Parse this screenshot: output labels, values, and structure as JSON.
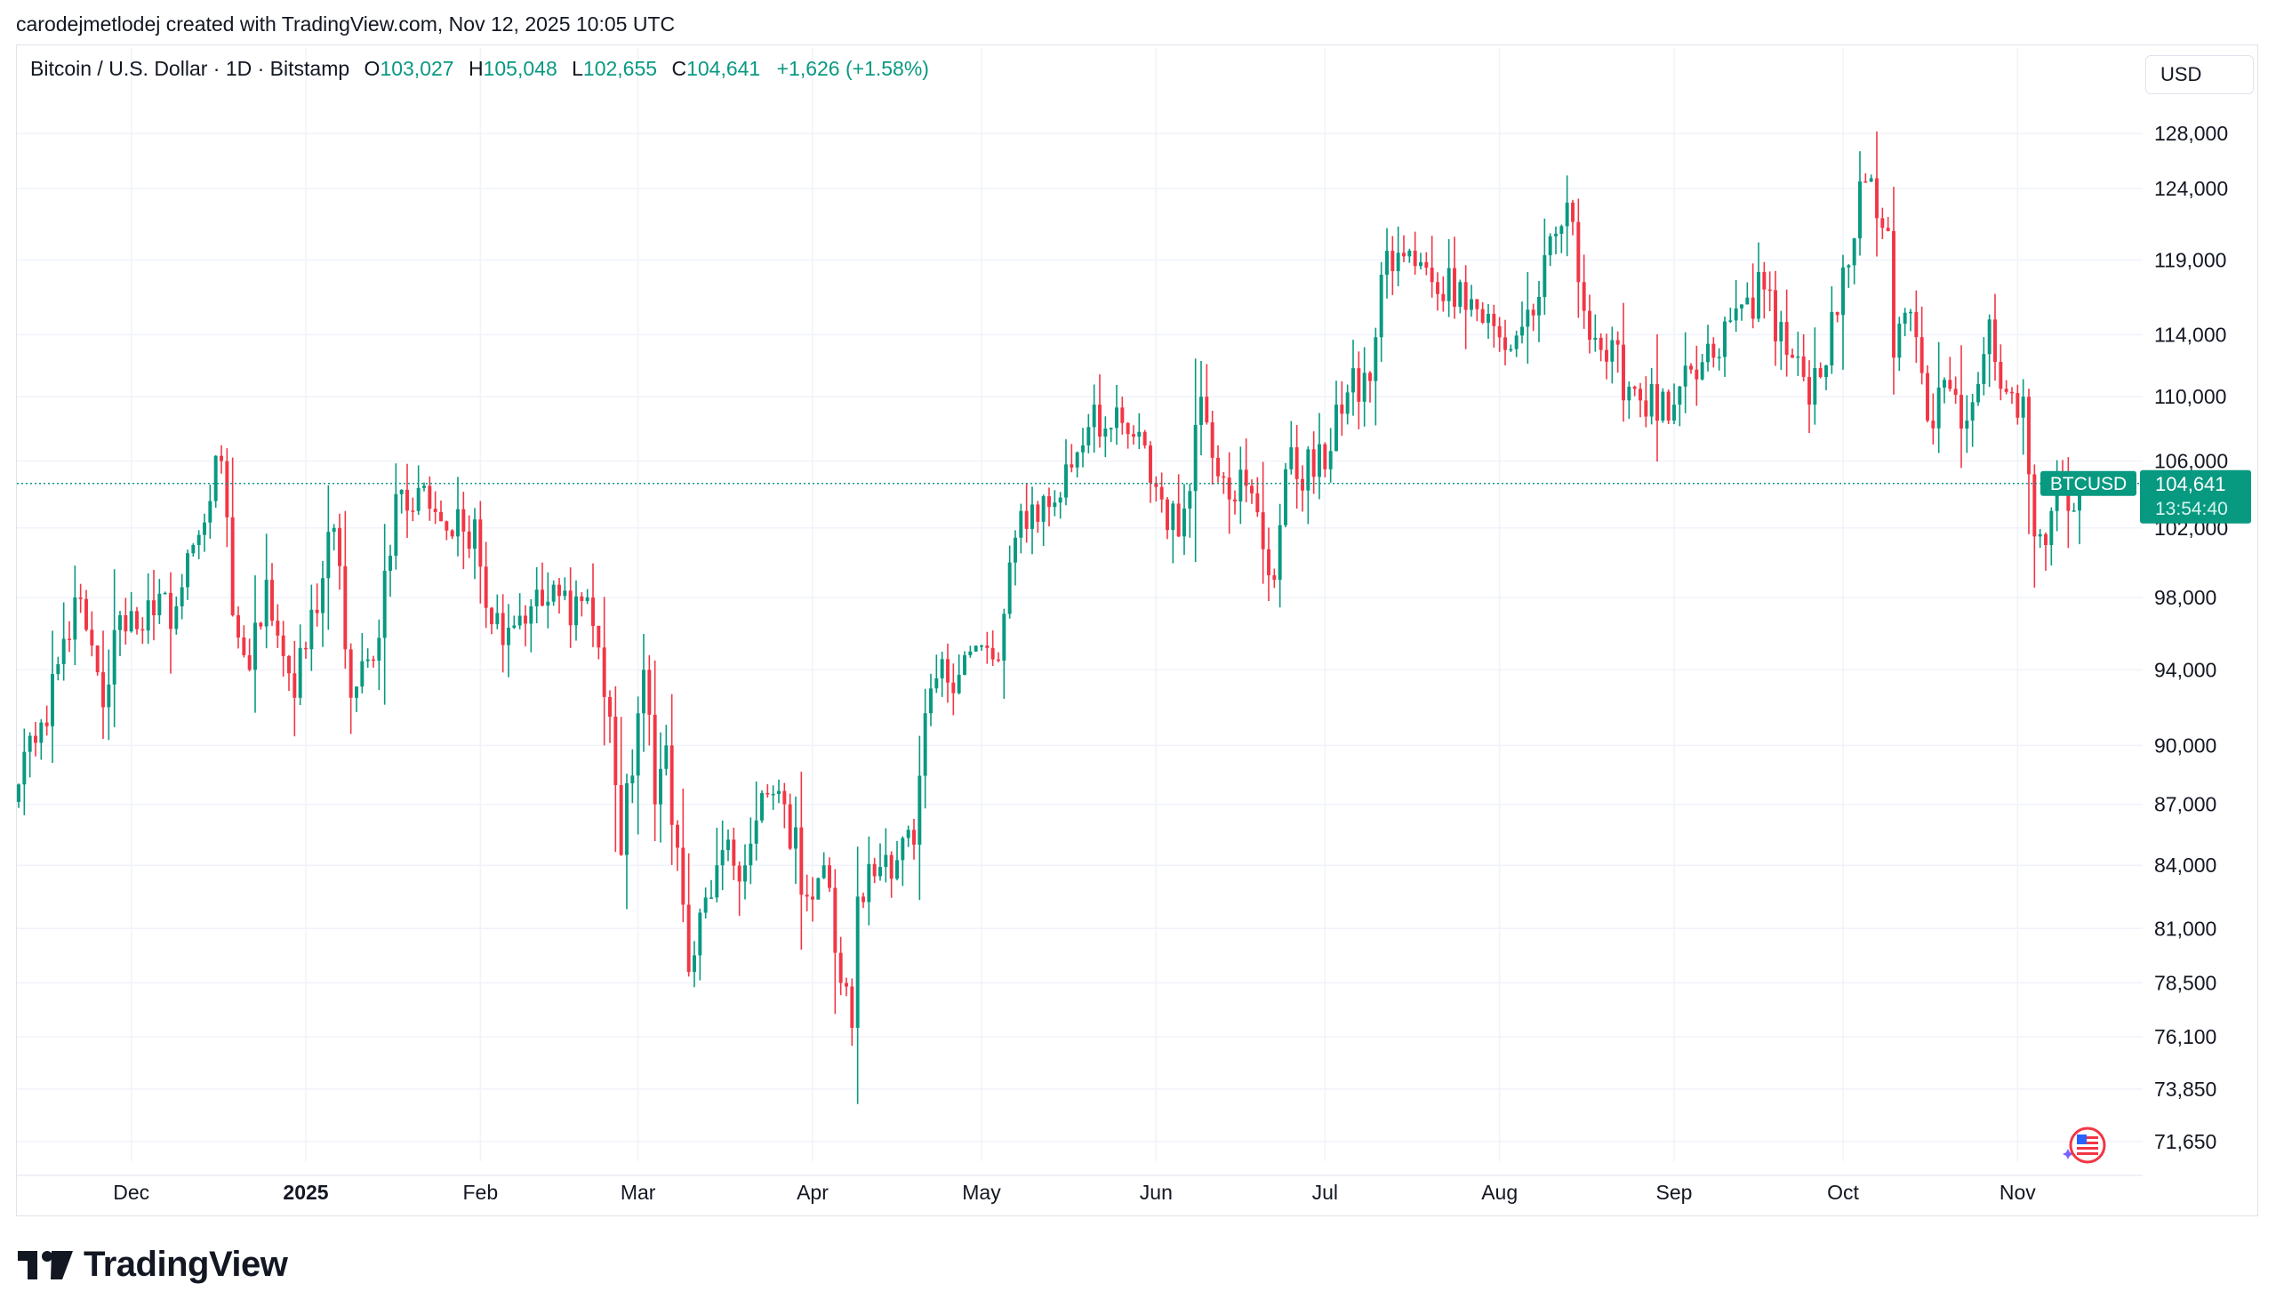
{
  "header": {
    "credit": "carodejmetlodej created with TradingView.com, Nov 12, 2025 10:05 UTC"
  },
  "legend": {
    "symbol": "Bitcoin / U.S. Dollar · 1D · Bitstamp",
    "o_label": "O",
    "o_value": "103,027",
    "h_label": "H",
    "h_value": "105,048",
    "l_label": "L",
    "l_value": "102,655",
    "c_label": "C",
    "c_value": "104,641",
    "change": "+1,626 (+1.58%)"
  },
  "currency_button": "USD",
  "price_tag": {
    "symbol": "BTCUSD",
    "price": "104,641",
    "countdown": "13:54:40"
  },
  "brand": {
    "name": "TradingView"
  },
  "colors": {
    "up": "#089981",
    "down": "#f23645",
    "grid": "#f0f3fa",
    "text": "#131722"
  },
  "icons": [
    "tradingview-logo-icon",
    "us-flag-icon",
    "sparkle-icon"
  ],
  "chart_data": {
    "type": "candlestick",
    "y_scale": "log",
    "ylim": [
      71650,
      129000
    ],
    "y_ticks": [
      128000,
      124000,
      119000,
      114000,
      110000,
      106000,
      102000,
      98000,
      94000,
      90000,
      87000,
      84000,
      81000,
      78500,
      76100,
      73850,
      71650
    ],
    "y_tick_labels": [
      "128,000",
      "124,000",
      "119,000",
      "114,000",
      "110,000",
      "106,000",
      "102,000",
      "98,000",
      "94,000",
      "90,000",
      "87,000",
      "84,000",
      "81,000",
      "78,500",
      "76,100",
      "73,850",
      "71,650"
    ],
    "x_ticks": [
      {
        "label": "Dec",
        "date": "2024-12-01"
      },
      {
        "label": "2025",
        "date": "2025-01-01",
        "bold": true
      },
      {
        "label": "Feb",
        "date": "2025-02-01"
      },
      {
        "label": "Mar",
        "date": "2025-03-01"
      },
      {
        "label": "Apr",
        "date": "2025-04-01"
      },
      {
        "label": "May",
        "date": "2025-05-01"
      },
      {
        "label": "Jun",
        "date": "2025-06-01"
      },
      {
        "label": "Jul",
        "date": "2025-07-01"
      },
      {
        "label": "Aug",
        "date": "2025-08-01"
      },
      {
        "label": "Sep",
        "date": "2025-09-01"
      },
      {
        "label": "Oct",
        "date": "2025-10-01"
      },
      {
        "label": "Nov",
        "date": "2025-11-01"
      }
    ],
    "start_date": "2024-11-11",
    "last_price": 104641,
    "grid": true,
    "close_keyframes": [
      [
        "2024-11-11",
        88000
      ],
      [
        "2024-11-13",
        90500
      ],
      [
        "2024-11-16",
        91000
      ],
      [
        "2024-11-21",
        98000
      ],
      [
        "2024-11-26",
        92000
      ],
      [
        "2024-11-29",
        97000
      ],
      [
        "2024-12-05",
        97000
      ],
      [
        "2024-12-09",
        97500
      ],
      [
        "2024-12-12",
        101000
      ],
      [
        "2024-12-17",
        106000
      ],
      [
        "2024-12-19",
        97000
      ],
      [
        "2024-12-22",
        94000
      ],
      [
        "2024-12-25",
        99000
      ],
      [
        "2024-12-30",
        92500
      ],
      [
        "2025-01-06",
        102000
      ],
      [
        "2025-01-09",
        92500
      ],
      [
        "2025-01-13",
        94500
      ],
      [
        "2025-01-17",
        104000
      ],
      [
        "2025-01-20",
        103000
      ],
      [
        "2025-01-22",
        104500
      ],
      [
        "2025-01-27",
        101500
      ],
      [
        "2025-01-31",
        102500
      ],
      [
        "2025-02-03",
        96500
      ],
      [
        "2025-02-10",
        97500
      ],
      [
        "2025-02-20",
        98000
      ],
      [
        "2025-02-24",
        91500
      ],
      [
        "2025-02-26",
        84500
      ],
      [
        "2025-03-02",
        94000
      ],
      [
        "2025-03-04",
        87000
      ],
      [
        "2025-03-06",
        90000
      ],
      [
        "2025-03-10",
        79000
      ],
      [
        "2025-03-15",
        84000
      ],
      [
        "2025-03-20",
        84000
      ],
      [
        "2025-03-24",
        87500
      ],
      [
        "2025-03-27",
        87000
      ],
      [
        "2025-03-31",
        82500
      ],
      [
        "2025-04-03",
        84000
      ],
      [
        "2025-04-06",
        78500
      ],
      [
        "2025-04-08",
        76500
      ],
      [
        "2025-04-09",
        82500
      ],
      [
        "2025-04-14",
        84500
      ],
      [
        "2025-04-19",
        85000
      ],
      [
        "2025-04-22",
        93000
      ],
      [
        "2025-04-29",
        95000
      ],
      [
        "2025-05-04",
        94500
      ],
      [
        "2025-05-08",
        103000
      ],
      [
        "2025-05-14",
        103500
      ],
      [
        "2025-05-21",
        109500
      ],
      [
        "2025-05-23",
        108000
      ],
      [
        "2025-05-28",
        107500
      ],
      [
        "2025-06-05",
        101500
      ],
      [
        "2025-06-09",
        110000
      ],
      [
        "2025-06-13",
        105000
      ],
      [
        "2025-06-17",
        104500
      ],
      [
        "2025-06-22",
        99000
      ],
      [
        "2025-06-24",
        105500
      ],
      [
        "2025-07-01",
        105500
      ],
      [
        "2025-07-03",
        109500
      ],
      [
        "2025-07-09",
        111000
      ],
      [
        "2025-07-11",
        118000
      ],
      [
        "2025-07-14",
        119500
      ],
      [
        "2025-07-20",
        117500
      ],
      [
        "2025-07-25",
        117500
      ],
      [
        "2025-08-02",
        113000
      ],
      [
        "2025-08-08",
        116500
      ],
      [
        "2025-08-13",
        123000
      ],
      [
        "2025-08-15",
        117500
      ],
      [
        "2025-08-19",
        113000
      ],
      [
        "2025-08-25",
        110500
      ],
      [
        "2025-08-31",
        108500
      ],
      [
        "2025-09-01",
        109500
      ],
      [
        "2025-09-08",
        112500
      ],
      [
        "2025-09-13",
        116000
      ],
      [
        "2025-09-17",
        117000
      ],
      [
        "2025-09-22",
        112500
      ],
      [
        "2025-09-25",
        109500
      ],
      [
        "2025-09-28",
        112000
      ],
      [
        "2025-10-01",
        118500
      ],
      [
        "2025-10-05",
        124500
      ],
      [
        "2025-10-09",
        121000
      ],
      [
        "2025-10-10",
        112500
      ],
      [
        "2025-10-13",
        115500
      ],
      [
        "2025-10-16",
        108500
      ],
      [
        "2025-10-20",
        110500
      ],
      [
        "2025-10-22",
        108000
      ],
      [
        "2025-10-27",
        115000
      ],
      [
        "2025-10-29",
        110500
      ],
      [
        "2025-11-02",
        110000
      ],
      [
        "2025-11-04",
        101500
      ],
      [
        "2025-11-06",
        101000
      ],
      [
        "2025-11-07",
        103000
      ],
      [
        "2025-11-09",
        104500
      ],
      [
        "2025-11-10",
        103000
      ],
      [
        "2025-11-11",
        103027
      ],
      [
        "2025-11-12",
        104641
      ]
    ]
  }
}
